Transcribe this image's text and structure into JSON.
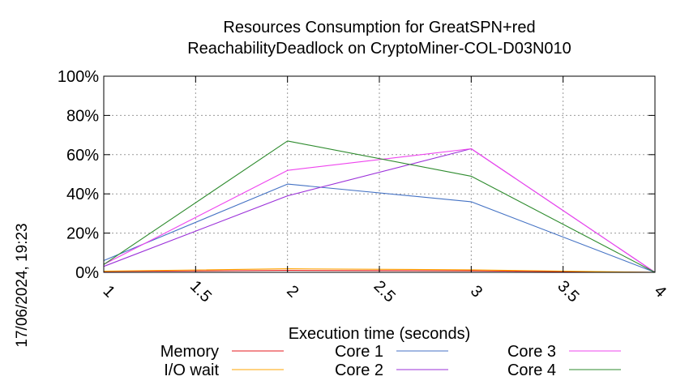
{
  "chart_data": {
    "type": "line",
    "title_line1": "Resources Consumption for GreatSPN+red",
    "title_line2": "ReachabilityDeadlock on CryptoMiner-COL-D03N010",
    "xlabel": "Execution time (seconds)",
    "ylabel": "",
    "timestamp": "17/06/2024, 19:23",
    "xlim": [
      1,
      4
    ],
    "ylim": [
      0,
      100
    ],
    "x_ticks": [
      "1",
      "1.5",
      "2",
      "2.5",
      "3",
      "3.5",
      "4"
    ],
    "y_ticks": [
      "0%",
      "20%",
      "40%",
      "60%",
      "80%",
      "100%"
    ],
    "grid": true,
    "legend_position": "bottom",
    "series": [
      {
        "name": "Memory",
        "color": "#e41a1c",
        "x": [
          1,
          2,
          3,
          4
        ],
        "y": [
          0.5,
          1.0,
          0.8,
          0
        ]
      },
      {
        "name": "I/O wait",
        "color": "#ffa500",
        "x": [
          1,
          2,
          3,
          4
        ],
        "y": [
          0.6,
          1.8,
          1.3,
          0
        ]
      },
      {
        "name": "Core 1",
        "color": "#4472c4",
        "x": [
          1,
          2,
          3,
          4
        ],
        "y": [
          6,
          45,
          36,
          0
        ]
      },
      {
        "name": "Core 2",
        "color": "#9b30d9",
        "x": [
          1,
          2,
          3,
          4
        ],
        "y": [
          3,
          39,
          63,
          0
        ]
      },
      {
        "name": "Core 3",
        "color": "#ee44ee",
        "x": [
          1,
          2,
          3,
          4
        ],
        "y": [
          4,
          52,
          63,
          0
        ]
      },
      {
        "name": "Core 4",
        "color": "#2e8b2e",
        "x": [
          1,
          2,
          3,
          4
        ],
        "y": [
          4,
          67,
          49,
          0
        ]
      }
    ]
  }
}
